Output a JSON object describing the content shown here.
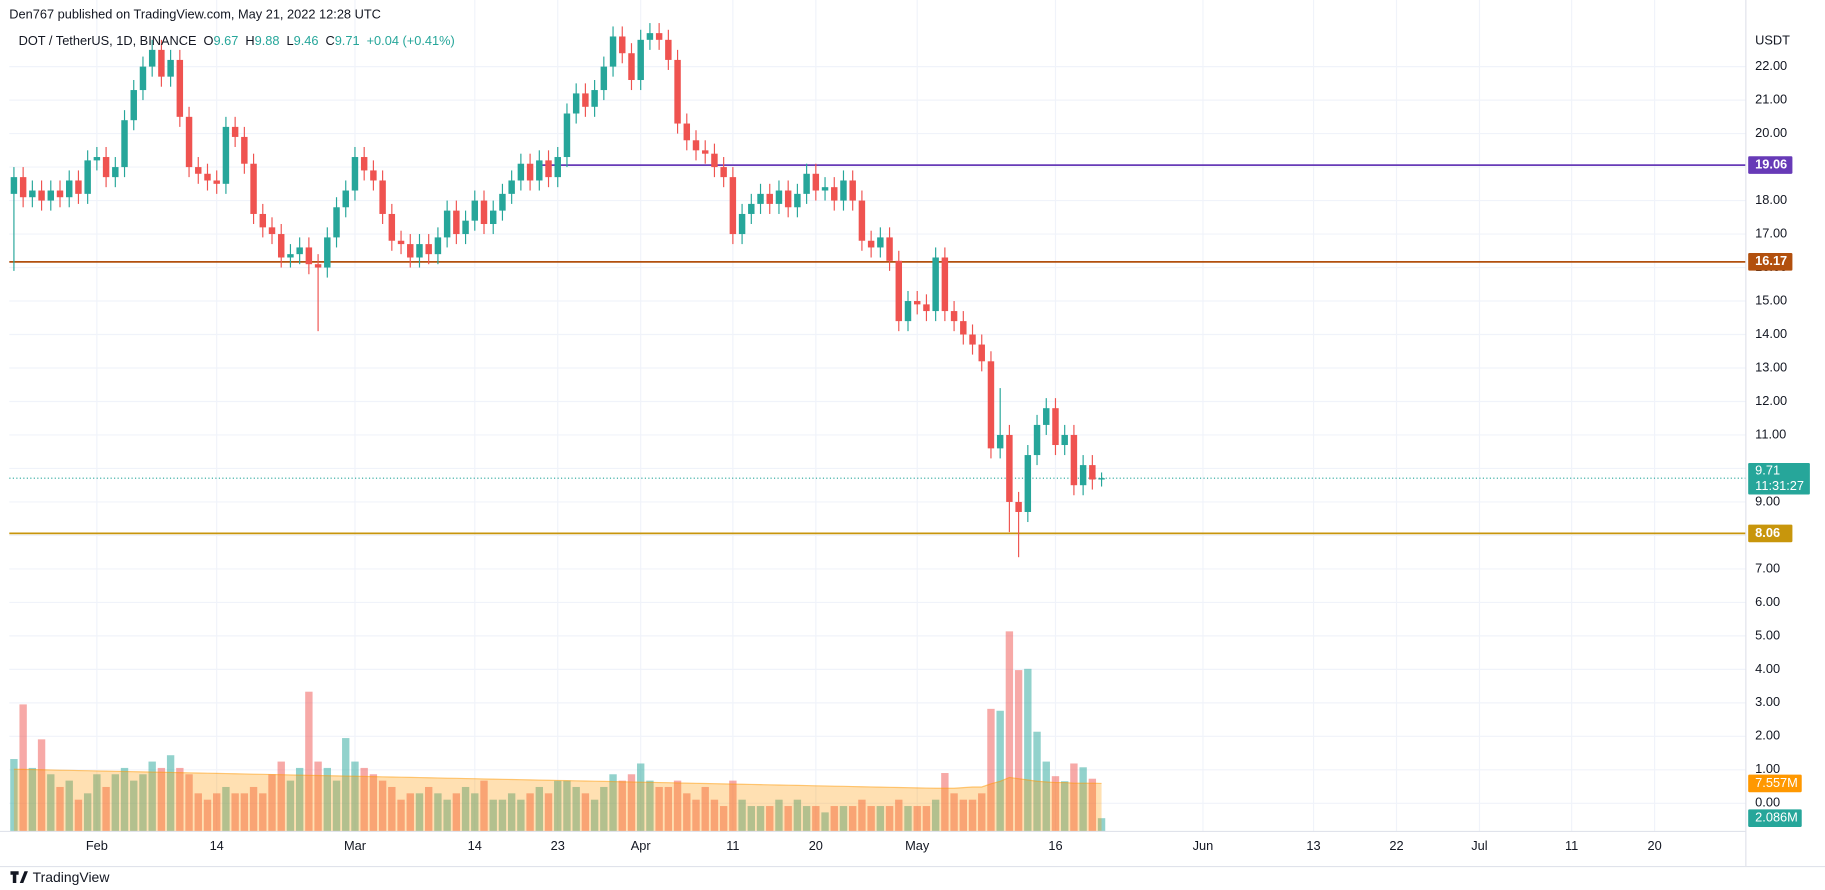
{
  "header": {
    "published": "Den767 published on TradingView.com, May 21, 2022 12:28 UTC"
  },
  "chart_data": {
    "type": "candlestick",
    "symbol": "DOT / TetherUS, 1D, BINANCE",
    "legend": [
      {
        "label": "O",
        "value": 9.67
      },
      {
        "label": "H",
        "value": 9.88
      },
      {
        "label": "L",
        "value": 9.46
      },
      {
        "label": "C",
        "value": 9.71
      }
    ],
    "change": "+0.04 (+0.41%)",
    "currency": "USDT",
    "xlim": [
      -0.5,
      187.9
    ],
    "xticks": [
      {
        "value": 9,
        "label": "Feb"
      },
      {
        "value": 22,
        "label": "14"
      },
      {
        "value": 37,
        "label": "Mar"
      },
      {
        "value": 50,
        "label": "14"
      },
      {
        "value": 59,
        "label": "23"
      },
      {
        "value": 68,
        "label": "Apr"
      },
      {
        "value": 78,
        "label": "11"
      },
      {
        "value": 87,
        "label": "20"
      },
      {
        "value": 98,
        "label": "May"
      },
      {
        "value": 113,
        "label": "16"
      },
      {
        "value": 129,
        "label": "Jun"
      },
      {
        "value": 141,
        "label": "13"
      },
      {
        "value": 150,
        "label": "22"
      },
      {
        "value": 159,
        "label": "Jul"
      },
      {
        "value": 169,
        "label": "11"
      },
      {
        "value": 178,
        "label": "20"
      }
    ],
    "ylim": [
      -0.84,
      23.22
    ],
    "yticks": [
      {
        "value": 0,
        "label": "0.00"
      },
      {
        "value": 1,
        "label": "1.00"
      },
      {
        "value": 2,
        "label": "2.00"
      },
      {
        "value": 3,
        "label": "3.00"
      },
      {
        "value": 4,
        "label": "4.00"
      },
      {
        "value": 5,
        "label": "5.00"
      },
      {
        "value": 6,
        "label": "6.00"
      },
      {
        "value": 7,
        "label": "7.00"
      },
      {
        "value": 8,
        "label": "8.00"
      },
      {
        "value": 9,
        "label": "9.00"
      },
      {
        "value": 10,
        "label": "10.00"
      },
      {
        "value": 11,
        "label": "11.00"
      },
      {
        "value": 12,
        "label": "12.00"
      },
      {
        "value": 13,
        "label": "13.00"
      },
      {
        "value": 14,
        "label": "14.00"
      },
      {
        "value": 15,
        "label": "15.00"
      },
      {
        "value": 16,
        "label": "16.00"
      },
      {
        "value": 17,
        "label": "17.00"
      },
      {
        "value": 18,
        "label": "18.00"
      },
      {
        "value": 19,
        "label": "19.00"
      },
      {
        "value": 20,
        "label": "20.00"
      },
      {
        "value": 21,
        "label": "21.00"
      },
      {
        "value": 22,
        "label": "22.00"
      }
    ],
    "grid": true,
    "up_color": "#26a69a",
    "down_color": "#ef5350",
    "open": [
      18.2,
      18.7,
      18.1,
      18.3,
      18.0,
      18.3,
      18.1,
      18.6,
      18.2,
      19.2,
      19.3,
      18.7,
      19.0,
      20.4,
      21.3,
      22.0,
      22.5,
      21.7,
      22.2,
      20.5,
      19.0,
      18.8,
      18.6,
      18.5,
      20.2,
      19.9,
      19.1,
      17.6,
      17.2,
      17.0,
      16.3,
      16.4,
      16.6,
      16.1,
      16.0,
      16.9,
      17.8,
      18.3,
      19.3,
      18.9,
      18.6,
      17.6,
      16.8,
      16.7,
      16.3,
      16.7,
      16.4,
      16.9,
      17.7,
      17.0,
      17.4,
      18.0,
      17.3,
      17.7,
      18.2,
      18.6,
      19.1,
      18.6,
      19.2,
      18.7,
      19.3,
      20.6,
      21.2,
      20.8,
      21.3,
      22.0,
      22.9,
      22.4,
      21.6,
      22.8,
      23.0,
      22.8,
      22.2,
      20.3,
      19.8,
      19.5,
      19.4,
      19.0,
      18.7,
      17.0,
      17.6,
      17.9,
      18.2,
      17.9,
      18.3,
      17.8,
      18.2,
      18.8,
      18.3,
      18.4,
      18.0,
      18.6,
      18.0,
      16.8,
      16.6,
      16.9,
      16.2,
      14.4,
      15.0,
      14.9,
      14.7,
      16.3,
      14.7,
      14.4,
      14.0,
      13.7,
      13.2,
      10.6,
      11.0,
      9.0,
      8.7,
      10.4,
      11.3,
      11.8,
      10.7,
      11.0,
      9.5,
      10.1,
      9.67
    ],
    "high": [
      19.0,
      19.0,
      18.6,
      18.6,
      18.6,
      18.6,
      18.9,
      18.9,
      19.5,
      19.6,
      19.6,
      19.3,
      20.7,
      21.6,
      22.3,
      22.8,
      22.8,
      22.5,
      22.5,
      20.8,
      19.3,
      19.1,
      18.9,
      20.5,
      20.5,
      20.2,
      19.4,
      17.9,
      17.5,
      17.3,
      16.7,
      16.9,
      16.9,
      16.4,
      17.2,
      18.1,
      18.6,
      19.6,
      19.6,
      19.2,
      18.9,
      17.9,
      17.1,
      17.0,
      17.0,
      17.0,
      17.2,
      18.0,
      18.0,
      17.7,
      18.3,
      18.3,
      18.0,
      18.5,
      18.9,
      19.4,
      19.4,
      19.5,
      19.5,
      19.6,
      20.9,
      21.5,
      21.5,
      21.6,
      22.3,
      23.2,
      23.2,
      22.7,
      23.1,
      23.3,
      23.3,
      23.1,
      22.5,
      20.6,
      20.1,
      19.8,
      19.7,
      19.3,
      19.0,
      17.9,
      18.2,
      18.5,
      18.5,
      18.6,
      18.6,
      18.5,
      19.1,
      19.1,
      18.7,
      18.7,
      18.9,
      18.9,
      18.3,
      17.1,
      17.2,
      17.2,
      16.5,
      15.3,
      15.3,
      15.2,
      16.6,
      16.6,
      15.0,
      14.7,
      14.3,
      14.0,
      13.5,
      12.4,
      11.3,
      9.3,
      10.7,
      11.6,
      12.1,
      12.1,
      11.3,
      11.3,
      10.4,
      10.4,
      9.88
    ],
    "low": [
      15.9,
      17.8,
      17.8,
      17.7,
      17.7,
      17.8,
      17.8,
      17.9,
      17.9,
      18.9,
      18.4,
      18.4,
      18.7,
      20.1,
      21.0,
      21.7,
      21.4,
      21.4,
      20.2,
      18.7,
      18.5,
      18.3,
      18.2,
      18.2,
      19.6,
      18.8,
      17.3,
      16.9,
      16.7,
      16.0,
      16.0,
      16.1,
      15.8,
      14.1,
      15.7,
      16.6,
      17.5,
      18.0,
      18.6,
      18.3,
      17.3,
      16.5,
      16.4,
      16.0,
      16.0,
      16.1,
      16.1,
      16.6,
      16.7,
      16.7,
      17.1,
      17.0,
      17.0,
      17.4,
      17.9,
      18.3,
      18.3,
      18.3,
      18.4,
      18.4,
      19.0,
      20.3,
      20.5,
      20.5,
      21.0,
      21.7,
      22.1,
      21.3,
      21.3,
      22.5,
      22.5,
      21.9,
      20.0,
      19.5,
      19.2,
      19.1,
      18.7,
      18.4,
      16.7,
      16.7,
      17.3,
      17.6,
      17.6,
      17.6,
      17.5,
      17.5,
      17.9,
      18.0,
      18.0,
      17.7,
      17.7,
      17.7,
      16.5,
      16.3,
      16.3,
      15.9,
      14.1,
      14.1,
      14.6,
      14.4,
      14.4,
      14.4,
      14.1,
      13.7,
      13.4,
      12.9,
      10.3,
      10.3,
      8.1,
      7.35,
      8.4,
      10.1,
      11.0,
      10.4,
      10.4,
      9.2,
      9.2,
      9.37,
      9.46
    ],
    "close": [
      18.7,
      18.1,
      18.3,
      18.0,
      18.3,
      18.1,
      18.6,
      18.2,
      19.2,
      19.3,
      18.7,
      19.0,
      20.4,
      21.3,
      22.0,
      22.5,
      21.7,
      22.2,
      20.5,
      19.0,
      18.8,
      18.6,
      18.5,
      20.2,
      19.9,
      19.1,
      17.6,
      17.2,
      17.0,
      16.3,
      16.4,
      16.6,
      16.1,
      16.0,
      16.9,
      17.8,
      18.3,
      19.3,
      18.9,
      18.6,
      17.6,
      16.8,
      16.7,
      16.3,
      16.7,
      16.4,
      16.9,
      17.7,
      17.0,
      17.4,
      18.0,
      17.3,
      17.7,
      18.2,
      18.6,
      19.1,
      18.6,
      19.2,
      18.7,
      19.3,
      20.6,
      21.2,
      20.8,
      21.3,
      22.0,
      22.9,
      22.4,
      21.6,
      22.8,
      23.0,
      22.8,
      22.2,
      20.3,
      19.8,
      19.5,
      19.4,
      19.0,
      18.7,
      17.0,
      17.6,
      17.9,
      18.2,
      17.9,
      18.3,
      17.8,
      18.2,
      18.8,
      18.3,
      18.4,
      18.0,
      18.6,
      18.0,
      16.8,
      16.6,
      16.9,
      16.2,
      14.4,
      15.0,
      14.9,
      14.7,
      16.3,
      14.7,
      14.4,
      14.0,
      13.7,
      13.2,
      10.6,
      11.0,
      9.0,
      8.7,
      10.4,
      11.3,
      11.8,
      10.7,
      11.0,
      9.5,
      10.1,
      9.67,
      9.71
    ],
    "volume": [
      11.4,
      20,
      10,
      14.5,
      9,
      7,
      8,
      5,
      6,
      9,
      7,
      9,
      10,
      8,
      9,
      11,
      10,
      12,
      10,
      9,
      6,
      5,
      6,
      7,
      6,
      6,
      7,
      6,
      9,
      11,
      8,
      10,
      22,
      11,
      10,
      8,
      14.7,
      11,
      10,
      9,
      8,
      7,
      5,
      6,
      6,
      7,
      6,
      5,
      6,
      7,
      6,
      8,
      5,
      5,
      6,
      5,
      6,
      7,
      6,
      8,
      8,
      7,
      6,
      5,
      7,
      9,
      8,
      9,
      10.7,
      8,
      7,
      7,
      8,
      6,
      5,
      7,
      5,
      4,
      8,
      5,
      4,
      4,
      4,
      5,
      4,
      5,
      4,
      4,
      3,
      4,
      4,
      4,
      5,
      4,
      4,
      4,
      5,
      4,
      4,
      4,
      5,
      9.2,
      6,
      5,
      5,
      6,
      19.3,
      19,
      31.5,
      25.4,
      25.6,
      15.7,
      11,
      8.7,
      7.9,
      10.7,
      10.1,
      8.3,
      2.086
    ],
    "volume_label": "2.086M",
    "volume_ma": [
      9.8,
      9.77,
      9.74,
      9.71,
      9.68,
      9.65,
      9.62,
      9.59,
      9.56,
      9.53,
      9.5,
      9.47,
      9.44,
      9.41,
      9.38,
      9.35,
      9.32,
      9.29,
      9.26,
      9.23,
      9.2,
      9.17,
      9.14,
      9.11,
      9.08,
      9.05,
      9.02,
      8.99,
      8.96,
      8.93,
      8.9,
      8.87,
      8.84,
      8.81,
      8.78,
      8.75,
      8.72,
      8.69,
      8.66,
      8.63,
      8.6,
      8.57,
      8.54,
      8.51,
      8.48,
      8.45,
      8.42,
      8.39,
      8.36,
      8.33,
      8.3,
      8.27,
      8.24,
      8.21,
      8.18,
      8.15,
      8.12,
      8.09,
      8.06,
      8.03,
      8.0,
      7.97,
      7.94,
      7.91,
      7.88,
      7.85,
      7.82,
      7.79,
      7.76,
      7.73,
      7.7,
      7.67,
      7.64,
      7.61,
      7.58,
      7.55,
      7.52,
      7.49,
      7.46,
      7.43,
      7.4,
      7.37,
      7.34,
      7.31,
      7.28,
      7.25,
      7.22,
      7.19,
      7.16,
      7.13,
      7.1,
      7.07,
      7.04,
      7.01,
      6.98,
      6.95,
      6.92,
      6.89,
      6.86,
      6.83,
      6.8,
      6.8,
      6.8,
      6.9,
      7.0,
      7.0,
      7.5,
      7.9,
      8.5,
      8.3,
      8.1,
      7.9,
      7.8,
      7.7,
      7.7,
      7.6,
      7.6,
      7.6,
      7.557
    ],
    "volume_ma_label": "7.557M",
    "volume_ma_color": "#ff9800",
    "volume_lim": [
      0,
      33
    ],
    "last_price": 9.71,
    "countdown": "11:31:27",
    "levels": [
      {
        "value": 19.06,
        "color": "#673ab7",
        "from": 57
      },
      {
        "value": 16.17,
        "color": "#b2500e"
      },
      {
        "value": 8.06,
        "color": "#c8960c"
      }
    ]
  },
  "footer": {
    "brand": "TradingView"
  }
}
